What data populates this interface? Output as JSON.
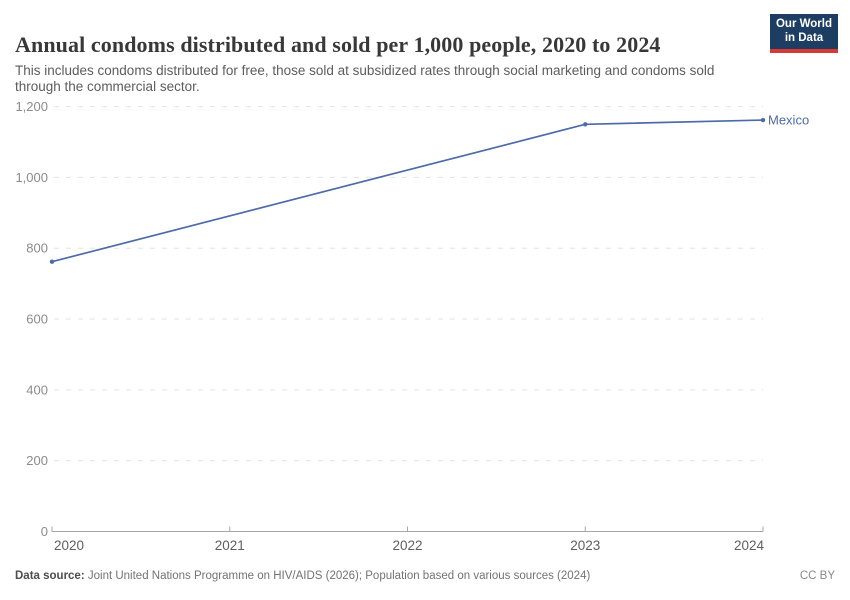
{
  "chart_data": {
    "type": "line",
    "title": "Annual condoms distributed and sold per 1,000 people, 2020 to 2024",
    "subtitle": "This includes condoms distributed for free, those sold at subsidized rates through social marketing and condoms sold through the commercial sector.",
    "xlabel": "",
    "ylabel": "",
    "xlim": [
      2020,
      2024
    ],
    "ylim": [
      0,
      1200
    ],
    "xticks": [
      2020,
      2021,
      2022,
      2023,
      2024
    ],
    "yticks": [
      0,
      200,
      400,
      600,
      800,
      1000,
      1200
    ],
    "grid": "horizontal-dashed",
    "legend_position": "end-of-line-label",
    "series": [
      {
        "name": "Mexico",
        "color": "#4C6BA8",
        "x": [
          2020,
          2023,
          2024
        ],
        "values": [
          762,
          1150,
          1162
        ]
      }
    ]
  },
  "logo": {
    "line1": "Our World",
    "line2": "in Data",
    "bg_color": "#1D3D63",
    "accent_color": "#D73A35"
  },
  "footer": {
    "source_label": "Data source:",
    "source_text": " Joint United Nations Programme on HIV/AIDS (2026); Population based on various sources (2024)",
    "license": "CC BY"
  },
  "colors": {
    "line": "#4C6BA8",
    "gridline": "#e3e3e3",
    "axis": "#a6a6a6",
    "y_tick_label": "#8b8b8b",
    "x_tick_label": "#5f5f5f"
  }
}
